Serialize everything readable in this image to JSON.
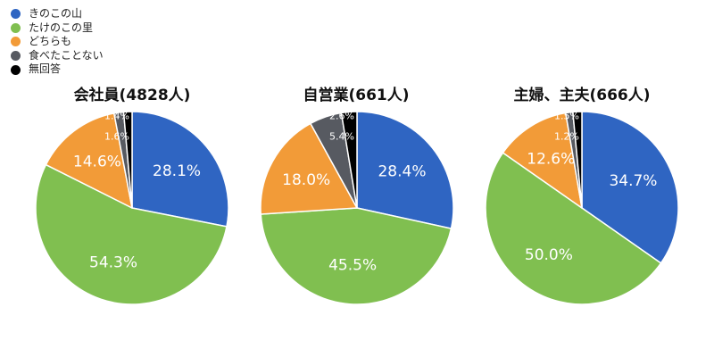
{
  "chart_data": {
    "type": "pie",
    "legend": {
      "placement": "top-left",
      "entries": [
        {
          "name": "きのこの山",
          "color": "#2F65C2"
        },
        {
          "name": "たけのこの里",
          "color": "#80BF50"
        },
        {
          "name": "どちらも",
          "color": "#F29B38"
        },
        {
          "name": "食べたことない",
          "color": "#575A61"
        },
        {
          "name": "無回答",
          "color": "#000000"
        }
      ]
    },
    "charts": [
      {
        "title": "会社員(4828人)",
        "values": [
          28.1,
          54.3,
          14.6,
          1.6,
          1.4
        ],
        "labels": [
          "28.1%",
          "54.3%",
          "14.6%",
          "1.6%",
          "1.4%"
        ]
      },
      {
        "title": "自営業(661人)",
        "values": [
          28.4,
          45.5,
          18.0,
          5.4,
          2.6
        ],
        "labels": [
          "28.4%",
          "45.5%",
          "18.0%",
          "5.4%",
          "2.6%"
        ]
      },
      {
        "title": "主婦、主夫(666人)",
        "values": [
          34.7,
          50.0,
          12.6,
          1.2,
          1.5
        ],
        "labels": [
          "34.7%",
          "50.0%",
          "12.6%",
          "1.2%",
          "1.5%"
        ]
      }
    ]
  }
}
